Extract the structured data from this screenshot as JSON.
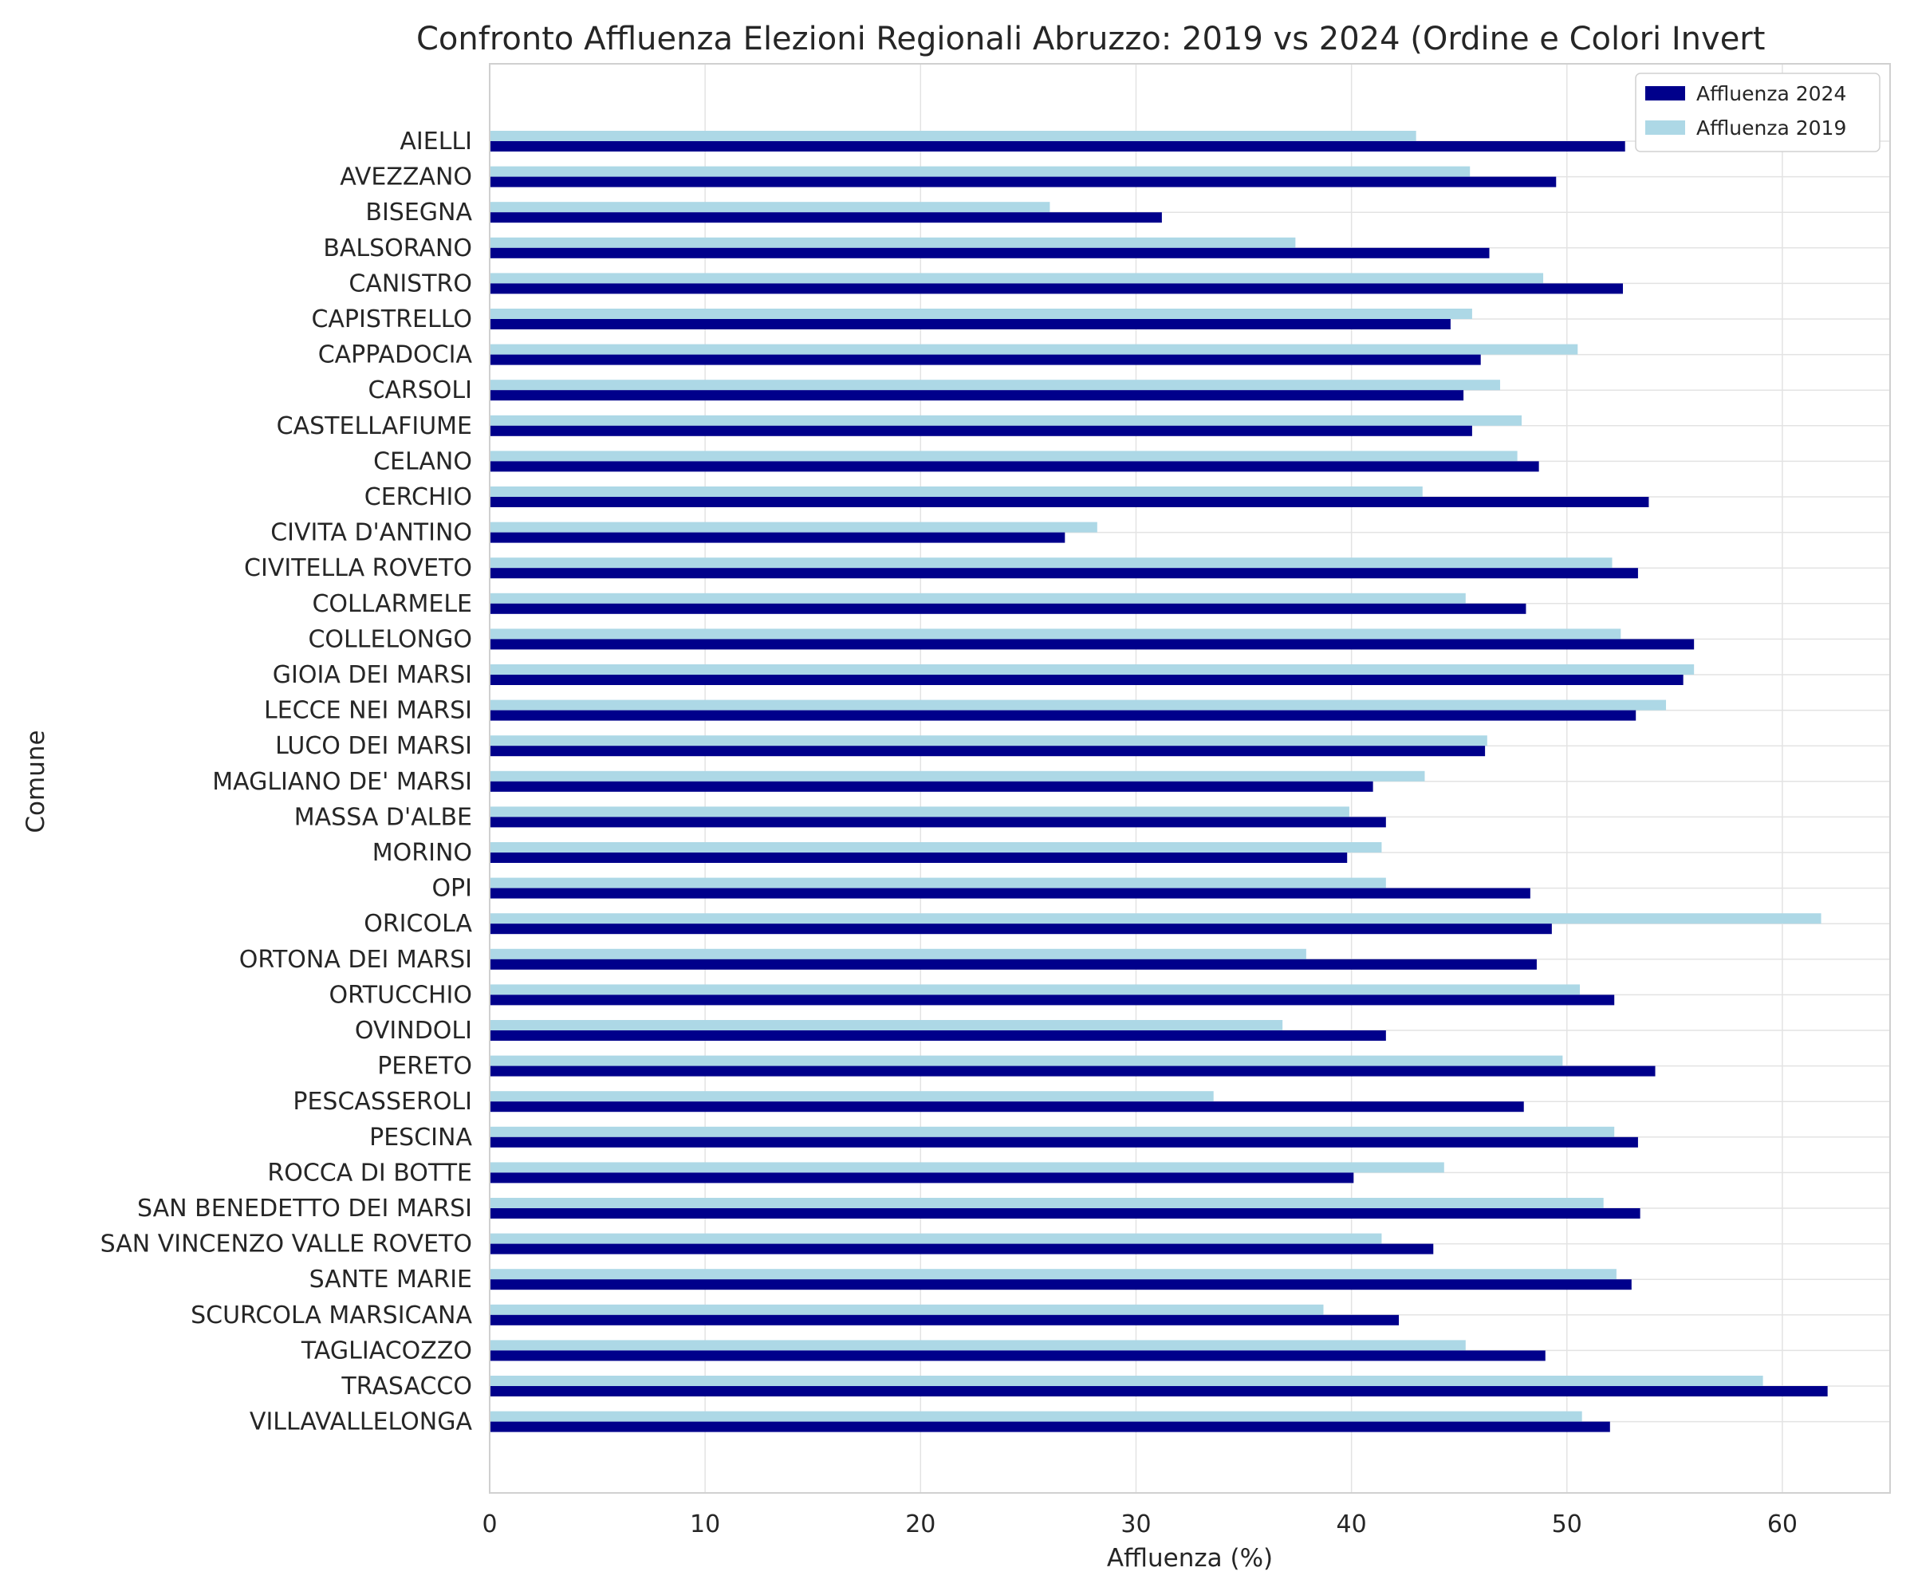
{
  "chart_data": {
    "type": "bar",
    "orientation": "horizontal",
    "title": "Confronto Affluenza Elezioni Regionali Abruzzo: 2019 vs 2024 (Ordine e Colori Invert",
    "xlabel": "Affluenza (%)",
    "ylabel": "Comune",
    "xlim": [
      0,
      65
    ],
    "xticks": [
      0,
      10,
      20,
      30,
      40,
      50,
      60
    ],
    "grid": true,
    "legend_position": "top-right",
    "categories": [
      "AIELLI",
      "AVEZZANO",
      "BISEGNA",
      "BALSORANO",
      "CANISTRO",
      "CAPISTRELLO",
      "CAPPADOCIA",
      "CARSOLI",
      "CASTELLAFIUME",
      "CELANO",
      "CERCHIO",
      "CIVITA D'ANTINO",
      "CIVITELLA ROVETO",
      "COLLARMELE",
      "COLLELONGO",
      "GIOIA DEI MARSI",
      "LECCE NEI MARSI",
      "LUCO DEI MARSI",
      "MAGLIANO DE' MARSI",
      "MASSA D'ALBE",
      "MORINO",
      "OPI",
      "ORICOLA",
      "ORTONA DEI MARSI",
      "ORTUCCHIO",
      "OVINDOLI",
      "PERETO",
      "PESCASSEROLI",
      "PESCINA",
      "ROCCA DI BOTTE",
      "SAN BENEDETTO DEI MARSI",
      "SAN VINCENZO VALLE ROVETO",
      "SANTE MARIE",
      "SCURCOLA MARSICANA",
      "TAGLIACOZZO",
      "TRASACCO",
      "VILLAVALLELONGA"
    ],
    "series": [
      {
        "name": "Affluenza 2024",
        "color": "#00008b",
        "values": [
          52.7,
          49.5,
          31.2,
          46.4,
          52.6,
          44.6,
          46.0,
          45.2,
          45.6,
          48.7,
          53.8,
          26.7,
          53.3,
          48.1,
          55.9,
          55.4,
          53.2,
          46.2,
          41.0,
          41.6,
          39.8,
          48.3,
          49.3,
          48.6,
          52.2,
          41.6,
          54.1,
          48.0,
          53.3,
          40.1,
          53.4,
          43.8,
          53.0,
          42.2,
          49.0,
          62.1,
          52.0
        ]
      },
      {
        "name": "Affluenza 2019",
        "color": "#add8e6",
        "values": [
          43.0,
          45.5,
          26.0,
          37.4,
          48.9,
          45.6,
          50.5,
          46.9,
          47.9,
          47.7,
          43.3,
          28.2,
          52.1,
          45.3,
          52.5,
          55.9,
          54.6,
          46.3,
          43.4,
          39.9,
          41.4,
          41.6,
          61.8,
          37.9,
          50.6,
          36.8,
          49.8,
          33.6,
          52.2,
          44.3,
          51.7,
          41.4,
          52.3,
          38.7,
          45.3,
          59.1,
          50.7
        ]
      }
    ]
  }
}
